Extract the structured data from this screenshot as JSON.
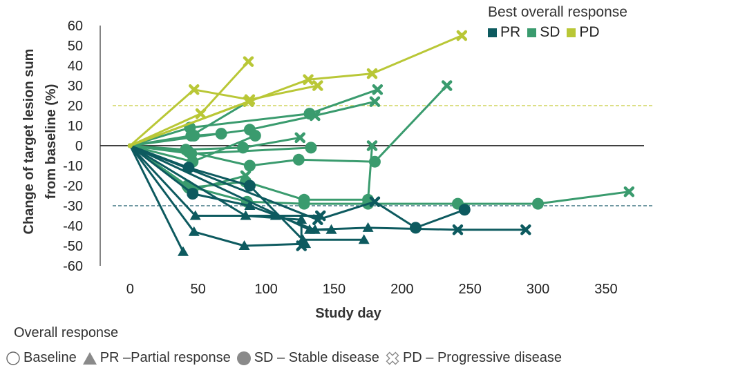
{
  "chart_data": {
    "type": "line",
    "title": "",
    "xlabel": "Study day",
    "ylabel": "Change of target lesion sum from baseline (%)",
    "xlim": [
      -22,
      378
    ],
    "ylim": [
      -60,
      60
    ],
    "xticks": [
      0,
      50,
      100,
      150,
      200,
      250,
      300,
      350
    ],
    "yticks": [
      60,
      50,
      40,
      30,
      20,
      10,
      0,
      -10,
      -20,
      -30,
      -40,
      -50,
      -60
    ],
    "reference_lines": [
      {
        "y": 0,
        "color": "#000000",
        "style": "solid"
      },
      {
        "y": 20,
        "color": "#c6cc3c",
        "style": "dashed"
      },
      {
        "y": -30,
        "color": "#1a5a6a",
        "style": "dashed"
      }
    ],
    "legend": {
      "title": "Best overall response",
      "position": "top-right",
      "items": [
        {
          "label": "PR",
          "color": "#0d5a5f"
        },
        {
          "label": "SD",
          "color": "#3a9b6e"
        },
        {
          "label": "PD",
          "color": "#b9c736"
        }
      ]
    },
    "markers_legend": {
      "title": "Overall response",
      "items": [
        {
          "symbol": "circle-open",
          "label": "Baseline"
        },
        {
          "symbol": "triangle",
          "label": "PR –Partial response"
        },
        {
          "symbol": "circle",
          "label": "SD – Stable disease"
        },
        {
          "symbol": "x-open",
          "label": "PD – Progressive disease"
        }
      ]
    },
    "series": [
      {
        "group": "PD",
        "points": [
          [
            0,
            0,
            "c"
          ],
          [
            47,
            28,
            "x"
          ],
          [
            88,
            23,
            "x"
          ],
          [
            138,
            30,
            "x"
          ]
        ]
      },
      {
        "group": "PD",
        "points": [
          [
            0,
            0,
            "c"
          ],
          [
            87,
            22,
            "x"
          ]
        ]
      },
      {
        "group": "PD",
        "points": [
          [
            0,
            0,
            "c"
          ],
          [
            52,
            16,
            "x"
          ],
          [
            87,
            42,
            "x"
          ]
        ]
      },
      {
        "group": "PD",
        "points": [
          [
            0,
            0,
            "c"
          ],
          [
            131,
            33,
            "x"
          ],
          [
            178,
            36,
            "x"
          ],
          [
            244,
            55,
            "x"
          ]
        ]
      },
      {
        "group": "SD",
        "points": [
          [
            0,
            0,
            "c"
          ],
          [
            45,
            5,
            "c"
          ],
          [
            87,
            22,
            "x"
          ]
        ]
      },
      {
        "group": "SD",
        "points": [
          [
            0,
            0,
            "c"
          ],
          [
            44,
            9,
            "c"
          ],
          [
            132,
            16,
            "c"
          ],
          [
            182,
            28,
            "x"
          ]
        ]
      },
      {
        "group": "SD",
        "points": [
          [
            0,
            0,
            "c"
          ],
          [
            47,
            5,
            "c"
          ],
          [
            67,
            6,
            "c"
          ]
        ]
      },
      {
        "group": "SD",
        "points": [
          [
            0,
            0,
            "c"
          ],
          [
            88,
            8,
            "c"
          ],
          [
            136,
            15,
            "x"
          ],
          [
            180,
            22,
            "x"
          ]
        ]
      },
      {
        "group": "SD",
        "points": [
          [
            0,
            0,
            "c"
          ],
          [
            46,
            -8,
            "c"
          ],
          [
            92,
            5,
            "c"
          ]
        ]
      },
      {
        "group": "SD",
        "points": [
          [
            0,
            0,
            "c"
          ],
          [
            41,
            -2,
            "c"
          ],
          [
            83,
            -1,
            "c"
          ],
          [
            125,
            4,
            "x"
          ]
        ]
      },
      {
        "group": "SD",
        "points": [
          [
            0,
            0,
            "c"
          ],
          [
            43,
            -3,
            "c"
          ],
          [
            88,
            -10,
            "c"
          ],
          [
            124,
            -7,
            "c"
          ],
          [
            180,
            -8,
            "c"
          ],
          [
            233,
            30,
            "x"
          ]
        ]
      },
      {
        "group": "SD",
        "points": [
          [
            0,
            0,
            "c"
          ],
          [
            45,
            -4,
            "c"
          ],
          [
            133,
            -1,
            "c"
          ]
        ]
      },
      {
        "group": "SD",
        "points": [
          [
            0,
            0,
            "c"
          ],
          [
            42,
            -20,
            "c"
          ],
          [
            86,
            -28,
            "c"
          ],
          [
            128,
            -29,
            "c"
          ],
          [
            175,
            -29,
            "c"
          ],
          [
            241,
            -29,
            "c"
          ],
          [
            300,
            -29,
            "c"
          ],
          [
            367,
            -23,
            "x"
          ]
        ]
      },
      {
        "group": "SD",
        "points": [
          [
            0,
            0,
            "c"
          ],
          [
            43,
            -21,
            "c"
          ],
          [
            85,
            -18,
            "c"
          ],
          [
            128,
            -27,
            "c"
          ],
          [
            175,
            -27,
            "c"
          ],
          [
            178,
            0,
            "x"
          ]
        ]
      },
      {
        "group": "SD",
        "points": [
          [
            0,
            0,
            "c"
          ],
          [
            46,
            -22,
            "c"
          ],
          [
            85,
            -15,
            "x"
          ]
        ]
      },
      {
        "group": "PR",
        "points": [
          [
            0,
            0,
            "c"
          ],
          [
            43,
            -11,
            "c"
          ],
          [
            88,
            -20,
            "c"
          ],
          [
            127,
            -47,
            "t"
          ],
          [
            172,
            -47,
            "t"
          ]
        ]
      },
      {
        "group": "PR",
        "points": [
          [
            0,
            0,
            "c"
          ],
          [
            46,
            -24,
            "c"
          ],
          [
            88,
            -30,
            "t"
          ],
          [
            136,
            -42,
            "t"
          ],
          [
            148,
            -42,
            "t"
          ]
        ]
      },
      {
        "group": "PR",
        "points": [
          [
            0,
            0,
            "c"
          ],
          [
            48,
            -35,
            "t"
          ],
          [
            107,
            -35,
            "t"
          ],
          [
            140,
            -35,
            "x"
          ]
        ]
      },
      {
        "group": "PR",
        "points": [
          [
            0,
            0,
            "c"
          ],
          [
            47,
            -43,
            "t"
          ],
          [
            84,
            -50,
            "t"
          ],
          [
            129,
            -49,
            "t"
          ]
        ]
      },
      {
        "group": "PR",
        "points": [
          [
            0,
            0,
            "c"
          ],
          [
            39,
            -53,
            "t"
          ]
        ]
      },
      {
        "group": "PR",
        "points": [
          [
            0,
            0,
            "c"
          ],
          [
            85,
            -35,
            "t"
          ],
          [
            126,
            -37,
            "t"
          ],
          [
            126,
            -50,
            "x"
          ]
        ]
      },
      {
        "group": "PR",
        "points": [
          [
            0,
            0,
            "c"
          ],
          [
            138,
            -37,
            "x"
          ],
          [
            180,
            -28,
            "x"
          ],
          [
            210,
            -41,
            "c"
          ],
          [
            246,
            -32,
            "c"
          ]
        ]
      },
      {
        "group": "PR",
        "points": [
          [
            0,
            0,
            "c"
          ],
          [
            132,
            -42,
            "t"
          ],
          [
            175,
            -41,
            "t"
          ],
          [
            241,
            -42,
            "x"
          ],
          [
            291,
            -42,
            "x"
          ]
        ]
      }
    ]
  }
}
